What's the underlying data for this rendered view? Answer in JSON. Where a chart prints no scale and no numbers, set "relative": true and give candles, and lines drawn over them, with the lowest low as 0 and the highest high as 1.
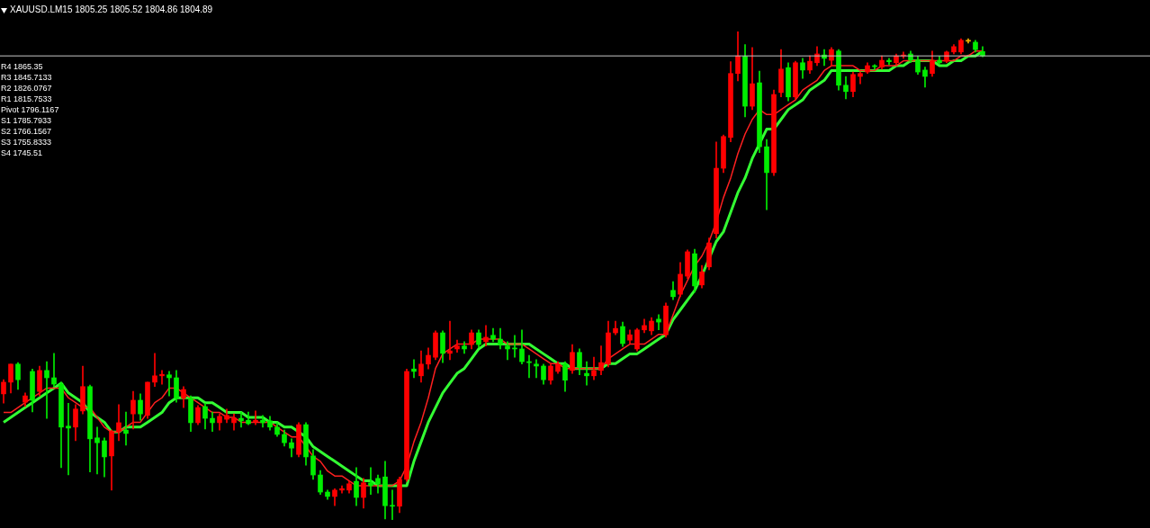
{
  "chart_data": {
    "type": "candlestick",
    "relative": true,
    "title": "XAUUSD.LM15 1805.25 1805.52 1804.86 1804.89",
    "annotations": [
      "R4 1865.35",
      "R3 1845.7133",
      "R2 1826.0767",
      "R1 1815.7533",
      "Pivot 1796.1167",
      "S1 1785.7933",
      "S2 1766.1567",
      "S3 1755.8333",
      "S4 1745.51"
    ],
    "categories": [
      null,
      null,
      null,
      null,
      null,
      null,
      null,
      null,
      null,
      null,
      null,
      null,
      null,
      null,
      null,
      null,
      null,
      null,
      null,
      null,
      null,
      null,
      null,
      null,
      null,
      null,
      null,
      null,
      null,
      null,
      null,
      null,
      null,
      null,
      null,
      null,
      null,
      null,
      null,
      null,
      null,
      null,
      null,
      null,
      null,
      null,
      null,
      null,
      null,
      null,
      null,
      null,
      null,
      null,
      null,
      null,
      null,
      null,
      null,
      null,
      null,
      null,
      null,
      null,
      null,
      null,
      null,
      null,
      null,
      null,
      null,
      null,
      null,
      null,
      null,
      null,
      null,
      null,
      null,
      null,
      null,
      null,
      null,
      null,
      null,
      null,
      null,
      null,
      null,
      null,
      null,
      null,
      null,
      null,
      null,
      null,
      null,
      null,
      null,
      null,
      null,
      null,
      null,
      null,
      null,
      null,
      null,
      null,
      null,
      null,
      null,
      null,
      null,
      null,
      null,
      null,
      null,
      null,
      null,
      null,
      null,
      null,
      null,
      null,
      null,
      null,
      null,
      null,
      null,
      null,
      null,
      null,
      null,
      null,
      null,
      null,
      null
    ],
    "ohlc": [
      [
        0.258,
        0.287,
        0.239,
        0.282
      ],
      [
        0.282,
        0.319,
        0.26,
        0.319
      ],
      [
        0.319,
        0.322,
        0.267,
        0.287
      ],
      [
        0.241,
        0.26,
        0.232,
        0.254
      ],
      [
        0.304,
        0.309,
        0.221,
        0.245
      ],
      [
        0.263,
        0.315,
        0.254,
        0.306
      ],
      [
        0.306,
        0.324,
        0.208,
        0.291
      ],
      [
        0.291,
        0.341,
        0.273,
        0.278
      ],
      [
        0.278,
        0.282,
        0.107,
        0.19
      ],
      [
        0.192,
        0.239,
        0.092,
        0.188
      ],
      [
        0.19,
        0.236,
        0.162,
        0.227
      ],
      [
        0.223,
        0.315,
        0.217,
        0.273
      ],
      [
        0.273,
        0.276,
        0.098,
        0.166
      ],
      [
        0.168,
        0.19,
        0.094,
        0.158
      ],
      [
        0.162,
        0.168,
        0.088,
        0.129
      ],
      [
        0.131,
        0.184,
        0.061,
        0.181
      ],
      [
        0.181,
        0.236,
        0.162,
        0.199
      ],
      [
        0.184,
        0.221,
        0.153,
        0.177
      ],
      [
        0.217,
        0.263,
        0.186,
        0.245
      ],
      [
        0.245,
        0.258,
        0.204,
        0.217
      ],
      [
        0.214,
        0.282,
        0.208,
        0.282
      ],
      [
        0.282,
        0.341,
        0.273,
        0.295
      ],
      [
        0.295,
        0.306,
        0.278,
        0.298
      ],
      [
        0.297,
        0.304,
        0.254,
        0.291
      ],
      [
        0.291,
        0.306,
        0.241,
        0.249
      ],
      [
        0.249,
        0.273,
        0.23,
        0.267
      ],
      [
        0.249,
        0.254,
        0.181,
        0.199
      ],
      [
        0.199,
        0.234,
        0.195,
        0.23
      ],
      [
        0.232,
        0.239,
        0.186,
        0.208
      ],
      [
        0.208,
        0.221,
        0.181,
        0.199
      ],
      [
        0.199,
        0.217,
        0.184,
        0.212
      ],
      [
        0.206,
        0.227,
        0.199,
        0.214
      ],
      [
        0.199,
        0.217,
        0.184,
        0.208
      ],
      [
        0.208,
        0.221,
        0.19,
        0.203
      ],
      [
        0.204,
        0.221,
        0.195,
        0.197
      ],
      [
        0.201,
        0.223,
        0.195,
        0.204
      ],
      [
        0.204,
        0.214,
        0.19,
        0.199
      ],
      [
        0.203,
        0.212,
        0.184,
        0.19
      ],
      [
        0.19,
        0.199,
        0.171,
        0.175
      ],
      [
        0.175,
        0.184,
        0.151,
        0.158
      ],
      [
        0.158,
        0.166,
        0.129,
        0.147
      ],
      [
        0.134,
        0.199,
        0.129,
        0.195
      ],
      [
        0.195,
        0.199,
        0.112,
        0.129
      ],
      [
        0.131,
        0.144,
        0.083,
        0.092
      ],
      [
        0.092,
        0.101,
        0.052,
        0.057
      ],
      [
        0.057,
        0.061,
        0.042,
        0.048
      ],
      [
        0.048,
        0.064,
        0.029,
        0.061
      ],
      [
        0.061,
        0.07,
        0.055,
        0.064
      ],
      [
        0.061,
        0.079,
        0.055,
        0.074
      ],
      [
        0.079,
        0.107,
        0.029,
        0.046
      ],
      [
        0.046,
        0.085,
        0.024,
        0.076
      ],
      [
        0.076,
        0.107,
        0.052,
        0.07
      ],
      [
        0.085,
        0.092,
        0.055,
        0.074
      ],
      [
        0.088,
        0.12,
        0.002,
        0.029
      ],
      [
        0.029,
        0.061,
        0,
        0.028
      ],
      [
        0.028,
        0.088,
        0.015,
        0.083
      ],
      [
        0.083,
        0.309,
        0.079,
        0.304
      ],
      [
        0.309,
        0.328,
        0.291,
        0.304
      ],
      [
        0.295,
        0.346,
        0.282,
        0.319
      ],
      [
        0.319,
        0.352,
        0.309,
        0.337
      ],
      [
        0.333,
        0.387,
        0.328,
        0.383
      ],
      [
        0.383,
        0.387,
        0.322,
        0.341
      ],
      [
        0.341,
        0.407,
        0.328,
        0.346
      ],
      [
        0.35,
        0.368,
        0.343,
        0.356
      ],
      [
        0.356,
        0.365,
        0.341,
        0.35
      ],
      [
        0.359,
        0.389,
        0.35,
        0.383
      ],
      [
        0.383,
        0.389,
        0.352,
        0.359
      ],
      [
        0.365,
        0.398,
        0.356,
        0.374
      ],
      [
        0.378,
        0.392,
        0.365,
        0.37
      ],
      [
        0.37,
        0.392,
        0.35,
        0.359
      ],
      [
        0.356,
        0.365,
        0.328,
        0.35
      ],
      [
        0.352,
        0.378,
        0.333,
        0.35
      ],
      [
        0.35,
        0.389,
        0.319,
        0.324
      ],
      [
        0.324,
        0.337,
        0.291,
        0.322
      ],
      [
        0.319,
        0.328,
        0.291,
        0.315
      ],
      [
        0.315,
        0.319,
        0.278,
        0.287
      ],
      [
        0.286,
        0.321,
        0.278,
        0.315
      ],
      [
        0.304,
        0.324,
        0.3,
        0.319
      ],
      [
        0.319,
        0.324,
        0.263,
        0.286
      ],
      [
        0.306,
        0.359,
        0.3,
        0.343
      ],
      [
        0.343,
        0.35,
        0.297,
        0.313
      ],
      [
        0.3,
        0.324,
        0.276,
        0.295
      ],
      [
        0.295,
        0.333,
        0.287,
        0.306
      ],
      [
        0.306,
        0.356,
        0.297,
        0.322
      ],
      [
        0.319,
        0.407,
        0.313,
        0.383
      ],
      [
        0.383,
        0.407,
        0.379,
        0.392
      ],
      [
        0.396,
        0.405,
        0.355,
        0.361
      ],
      [
        0.368,
        0.389,
        0.361,
        0.379
      ],
      [
        0.35,
        0.392,
        0.346,
        0.389
      ],
      [
        0.389,
        0.411,
        0.383,
        0.398
      ],
      [
        0.387,
        0.414,
        0.379,
        0.407
      ],
      [
        0.411,
        0.42,
        0.389,
        0.405
      ],
      [
        0.379,
        0.444,
        0.374,
        0.438
      ],
      [
        0.47,
        0.488,
        0.451,
        0.457
      ],
      [
        0.462,
        0.527,
        0.457,
        0.503
      ],
      [
        0.499,
        0.553,
        0.494,
        0.549
      ],
      [
        0.545,
        0.554,
        0.466,
        0.479
      ],
      [
        0.481,
        0.521,
        0.475,
        0.508
      ],
      [
        0.518,
        0.577,
        0.512,
        0.567
      ],
      [
        0.586,
        0.774,
        0.577,
        0.72
      ],
      [
        0.72,
        0.788,
        0.711,
        0.785
      ],
      [
        0.783,
        0.938,
        0.774,
        0.914
      ],
      [
        0.914,
        1,
        0.899,
        0.95
      ],
      [
        0.949,
        0.973,
        0.825,
        0.847
      ],
      [
        0.847,
        0.967,
        0.84,
        0.893
      ],
      [
        0.895,
        0.919,
        0.752,
        0.764
      ],
      [
        0.764,
        0.779,
        0.635,
        0.711
      ],
      [
        0.711,
        0.88,
        0.705,
        0.871
      ],
      [
        0.875,
        0.963,
        0.866,
        0.923
      ],
      [
        0.926,
        0.936,
        0.858,
        0.866
      ],
      [
        0.866,
        0.939,
        0.862,
        0.936
      ],
      [
        0.936,
        0.945,
        0.904,
        0.921
      ],
      [
        0.921,
        0.95,
        0.914,
        0.939
      ],
      [
        0.936,
        0.969,
        0.93,
        0.954
      ],
      [
        0.952,
        0.963,
        0.93,
        0.945
      ],
      [
        0.941,
        0.967,
        0.93,
        0.963
      ],
      [
        0.96,
        0.963,
        0.88,
        0.89
      ],
      [
        0.89,
        0.908,
        0.862,
        0.877
      ],
      [
        0.877,
        0.917,
        0.866,
        0.912
      ],
      [
        0.908,
        0.917,
        0.893,
        0.914
      ],
      [
        0.917,
        0.936,
        0.914,
        0.93
      ],
      [
        0.93,
        0.932,
        0.923,
        0.928
      ],
      [
        0.927,
        0.95,
        0.923,
        0.941
      ],
      [
        0.941,
        0.945,
        0.932,
        0.938
      ],
      [
        0.936,
        0.954,
        0.932,
        0.95
      ],
      [
        0.95,
        0.958,
        0.945,
        0.952
      ],
      [
        0.954,
        0.96,
        0.936,
        0.941
      ],
      [
        0.941,
        0.949,
        0.912,
        0.917
      ],
      [
        0.921,
        0.927,
        0.886,
        0.908
      ],
      [
        0.914,
        0.96,
        0.908,
        0.941
      ],
      [
        0.941,
        0.949,
        0.932,
        0.936
      ],
      [
        0.939,
        0.96,
        0.936,
        0.958
      ],
      [
        0.958,
        0.973,
        0.954,
        0.969
      ],
      [
        0.958,
        0.985,
        0.954,
        0.982
      ],
      [
        0.98,
        0.985,
        0.976,
        0.982
      ],
      [
        0.978,
        0.982,
        0.958,
        0.963
      ],
      [
        0.959,
        0.969,
        0.948,
        0.95
      ]
    ],
    "colors": [
      "#ff0000",
      "#ff0000",
      "#00ee00",
      "#ff0000",
      "#00ee00",
      "#ff0000",
      "#00ee00",
      "#00ee00",
      "#00ee00",
      "#00ee00",
      "#ff0000",
      "#ff0000",
      "#00ee00",
      "#00ee00",
      "#00ee00",
      "#ff0000",
      "#ff0000",
      "#00ee00",
      "#ff0000",
      "#00ee00",
      "#ff0000",
      "#ff0000",
      "#ff0000",
      "#00ee00",
      "#00ee00",
      "#ff0000",
      "#00ee00",
      "#ff0000",
      "#00ee00",
      "#00ee00",
      "#ff0000",
      "#ff0000",
      "#ff0000",
      "#00ee00",
      "#00ee00",
      "#ff0000",
      "#00ee00",
      "#00ee00",
      "#00ee00",
      "#00ee00",
      "#00ee00",
      "#ff0000",
      "#00ee00",
      "#00ee00",
      "#00ee00",
      "#00ee00",
      "#ff0000",
      "#ff0000",
      "#ff0000",
      "#00ee00",
      "#ff0000",
      "#00ee00",
      "#00ee00",
      "#00ee00",
      "#00ee00",
      "#ff0000",
      "#ff0000",
      "#00ee00",
      "#ff0000",
      "#ff0000",
      "#ff0000",
      "#00ee00",
      "#ff0000",
      "#ff0000",
      "#00ee00",
      "#ff0000",
      "#00ee00",
      "#ff0000",
      "#00ee00",
      "#00ee00",
      "#00ee00",
      "#00ee00",
      "#00ee00",
      "#00ee00",
      "#00ee00",
      "#00ee00",
      "#ff0000",
      "#ff0000",
      "#00ee00",
      "#ff0000",
      "#00ee00",
      "#00ee00",
      "#ff0000",
      "#ff0000",
      "#ff0000",
      "#ff0000",
      "#00ee00",
      "#ff0000",
      "#ff0000",
      "#ff0000",
      "#ff0000",
      "#00ee00",
      "#ff0000",
      "#00ee00",
      "#ff0000",
      "#ff0000",
      "#00ee00",
      "#ff0000",
      "#ff0000",
      "#ff0000",
      "#ff0000",
      "#ff0000",
      "#ff0000",
      "#00ee00",
      "#ff0000",
      "#00ee00",
      "#00ee00",
      "#ff0000",
      "#ff0000",
      "#00ee00",
      "#ff0000",
      "#00ee00",
      "#ff0000",
      "#ff0000",
      "#00ee00",
      "#ff0000",
      "#00ee00",
      "#00ee00",
      "#ff0000",
      "#ff0000",
      "#ff0000",
      "#00ee00",
      "#ff0000",
      "#00ee00",
      "#ff0000",
      "#ff0000",
      "#00ee00",
      "#00ee00",
      "#00ee00",
      "#ff0000",
      "#00ee00",
      "#ff0000",
      "#ff0000",
      "#ff0000",
      "#f0b000",
      "#00ee00",
      "#00ee00"
    ],
    "series": [
      {
        "type": "line",
        "color": "#33ff33",
        "values": [
          0.2,
          0.21,
          0.22,
          0.23,
          0.24,
          0.25,
          0.26,
          0.27,
          0.28,
          0.26,
          0.25,
          0.24,
          0.22,
          0.21,
          0.2,
          0.18,
          0.18,
          0.19,
          0.19,
          0.19,
          0.2,
          0.21,
          0.22,
          0.24,
          0.25,
          0.25,
          0.25,
          0.25,
          0.24,
          0.24,
          0.23,
          0.22,
          0.22,
          0.22,
          0.21,
          0.21,
          0.21,
          0.2,
          0.2,
          0.19,
          0.19,
          0.18,
          0.17,
          0.15,
          0.14,
          0.13,
          0.12,
          0.11,
          0.1,
          0.09,
          0.08,
          0.08,
          0.07,
          0.07,
          0.07,
          0.07,
          0.07,
          0.12,
          0.16,
          0.2,
          0.23,
          0.26,
          0.28,
          0.3,
          0.31,
          0.33,
          0.35,
          0.36,
          0.36,
          0.36,
          0.36,
          0.36,
          0.36,
          0.36,
          0.35,
          0.34,
          0.33,
          0.32,
          0.32,
          0.31,
          0.31,
          0.31,
          0.31,
          0.31,
          0.32,
          0.32,
          0.33,
          0.34,
          0.34,
          0.35,
          0.36,
          0.37,
          0.38,
          0.41,
          0.43,
          0.45,
          0.47,
          0.5,
          null,
          0.57,
          0.59,
          0.63,
          0.67,
          0.7,
          0.74,
          0.77,
          0.8,
          0.8,
          0.82,
          0.84,
          0.85,
          0.86,
          0.88,
          0.89,
          0.9,
          0.92,
          0.92,
          0.92,
          0.92,
          0.92,
          0.92,
          0.92,
          0.92,
          0.92,
          0.93,
          0.93,
          0.94,
          null,
          0.94,
          0.94,
          0.93,
          0.93,
          0.94,
          0.94,
          0.95,
          0.95,
          0.96
        ]
      },
      {
        "type": "line",
        "color": "#ff2020",
        "values": [
          0.22,
          0.22,
          0.23,
          0.24,
          0.25,
          0.26,
          0.27,
          0.27,
          0.27,
          0.25,
          0.24,
          0.23,
          0.23,
          0.21,
          0.19,
          0.18,
          0.18,
          0.19,
          0.2,
          0.2,
          0.22,
          0.24,
          0.25,
          0.27,
          0.27,
          0.26,
          0.25,
          0.24,
          0.23,
          0.22,
          0.22,
          0.21,
          0.21,
          0.2,
          0.2,
          0.2,
          0.2,
          0.2,
          0.19,
          0.18,
          0.17,
          0.17,
          0.15,
          0.13,
          0.12,
          0.1,
          0.09,
          0.09,
          0.08,
          0.07,
          0.07,
          0.07,
          0.07,
          null,
          0.07,
          0.08,
          0.11,
          0.16,
          0.2,
          0.25,
          0.31,
          0.34,
          0.35,
          0.36,
          0.36,
          0.36,
          0.37,
          0.37,
          0.37,
          0.37,
          0.36,
          0.36,
          0.36,
          0.35,
          0.34,
          0.33,
          0.32,
          0.32,
          0.31,
          0.31,
          0.31,
          0.31,
          0.31,
          0.31,
          0.33,
          0.34,
          0.35,
          0.36,
          0.36,
          0.36,
          0.37,
          0.38,
          0.38,
          0.42,
          0.46,
          0.49,
          0.52,
          0.54,
          0.57,
          0.61,
          0.66,
          0.7,
          0.75,
          0.79,
          0.82,
          0.84,
          0.83,
          0.83,
          0.84,
          0.85,
          0.86,
          0.88,
          0.89,
          0.9,
          0.92,
          0.93,
          0.93,
          0.93,
          0.93,
          0.92,
          0.92,
          0.92,
          0.93,
          0.93,
          0.93,
          0.94,
          0.94,
          null,
          0.94,
          0.94,
          0.94,
          0.94,
          0.94,
          0.95,
          0.95,
          0.96,
          0.96
        ]
      }
    ],
    "ref_lines": [
      {
        "axis": "y",
        "value": 0.95,
        "color": "#c8c8c8"
      }
    ]
  }
}
